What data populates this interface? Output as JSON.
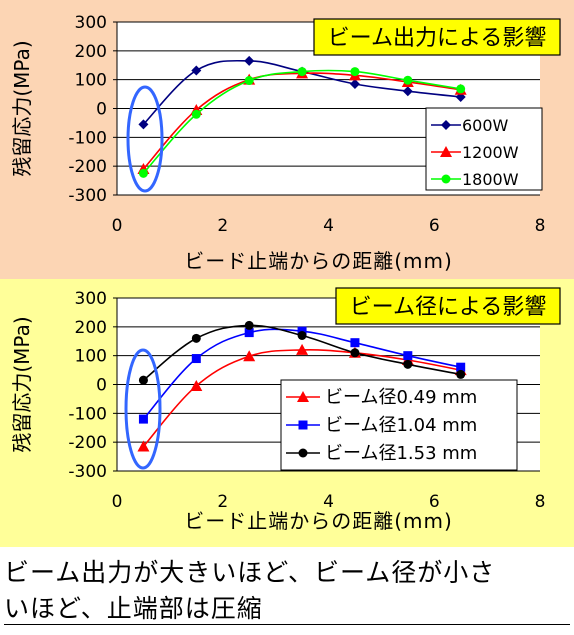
{
  "chart_data": [
    {
      "type": "line",
      "title": "ビーム出力による影響",
      "xlabel": "ビード止端からの距離(mm)",
      "ylabel": "残留応力(MPa)",
      "xlim": [
        0,
        8
      ],
      "ylim": [
        -300,
        300
      ],
      "xticks": [
        0,
        2,
        4,
        6,
        8
      ],
      "yticks": [
        300,
        200,
        100,
        0,
        -100,
        -200,
        -300
      ],
      "xtick_labels": [
        "0",
        "2",
        "4",
        "6",
        "8"
      ],
      "ytick_labels": [
        "300",
        "200",
        "100",
        "0",
        "-100",
        "-200",
        "-300"
      ],
      "grid": "horizontal",
      "legend_position": "bottom-right",
      "background": "#fcd5b4",
      "series": [
        {
          "name": "600W",
          "color": "#000080",
          "marker": "diamond",
          "x": [
            0.5,
            1.5,
            2.5,
            3.5,
            4.5,
            5.5,
            6.5
          ],
          "y": [
            -55,
            132,
            165,
            128,
            85,
            60,
            40
          ]
        },
        {
          "name": "1200W",
          "color": "#ff0000",
          "marker": "triangle",
          "x": [
            0.5,
            1.5,
            2.5,
            3.5,
            4.5,
            5.5,
            6.5
          ],
          "y": [
            -210,
            -5,
            100,
            122,
            115,
            92,
            65
          ]
        },
        {
          "name": "1800W",
          "color": "#00ff00",
          "marker": "circle",
          "x": [
            0.5,
            1.5,
            2.5,
            3.5,
            4.5,
            5.5,
            6.5
          ],
          "y": [
            -225,
            -20,
            97,
            128,
            128,
            98,
            68
          ]
        }
      ],
      "annotation": "ellipse around x=0.5 points"
    },
    {
      "type": "line",
      "title": "ビーム径による影響",
      "xlabel": "ビード止端からの距離(mm)",
      "ylabel": "残留応力(MPa)",
      "xlim": [
        0,
        8
      ],
      "ylim": [
        -300,
        300
      ],
      "xticks": [
        0,
        2,
        4,
        6,
        8
      ],
      "yticks": [
        300,
        200,
        100,
        0,
        -100,
        -200,
        -300
      ],
      "xtick_labels": [
        "0",
        "2",
        "4",
        "6",
        "8"
      ],
      "ytick_labels": [
        "300",
        "200",
        "100",
        "0",
        "-100",
        "-200",
        "-300"
      ],
      "grid": "horizontal",
      "legend_position": "bottom-right",
      "background": "#ffff99",
      "series": [
        {
          "name": "ビーム径0.49 mm",
          "color": "#ff0000",
          "marker": "triangle",
          "x": [
            0.5,
            1.5,
            2.5,
            3.5,
            4.5,
            5.5,
            6.5
          ],
          "y": [
            -215,
            -5,
            98,
            120,
            110,
            85,
            50
          ]
        },
        {
          "name": "ビーム径1.04 mm",
          "color": "#0000ff",
          "marker": "square",
          "x": [
            0.5,
            1.5,
            2.5,
            3.5,
            4.5,
            5.5,
            6.5
          ],
          "y": [
            -120,
            90,
            180,
            185,
            145,
            100,
            60
          ]
        },
        {
          "name": "ビーム径1.53 mm",
          "color": "#000000",
          "marker": "circle",
          "x": [
            0.5,
            1.5,
            2.5,
            3.5,
            4.5,
            5.5,
            6.5
          ],
          "y": [
            15,
            160,
            205,
            170,
            110,
            70,
            35
          ]
        }
      ],
      "annotation": "ellipse around x=0.5 points"
    }
  ],
  "caption": {
    "line1": "ビーム出力が大きいほど、ビーム径が小さ",
    "line2": "いほど、止端部は圧縮"
  }
}
